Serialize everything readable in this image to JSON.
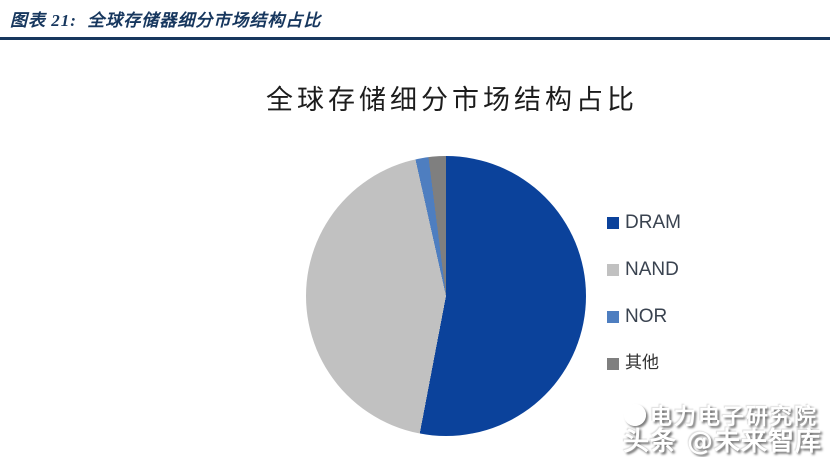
{
  "page": {
    "header": {
      "label": "图表 21:  全球存储器细分市场结构占比"
    },
    "watermark": {
      "line1": "电力电子研究院",
      "line2": "头条 @未来智库",
      "logo": "power-circle-logo"
    },
    "accent_color": "#17375E",
    "background_color": "#FFFFFF"
  },
  "chart_data": {
    "type": "pie",
    "title": "全球存储细分市场结构占比",
    "categories": [
      "DRAM",
      "NAND",
      "NOR",
      "其他"
    ],
    "values": [
      53,
      43.5,
      1.5,
      2
    ],
    "unit": "percent_share",
    "colors": [
      "#0B429B",
      "#C1C1C1",
      "#4E7EC0",
      "#7F7F7F"
    ],
    "legend_position": "right",
    "start_angle_deg": 0,
    "direction": "clockwise",
    "data_labels": "none"
  }
}
